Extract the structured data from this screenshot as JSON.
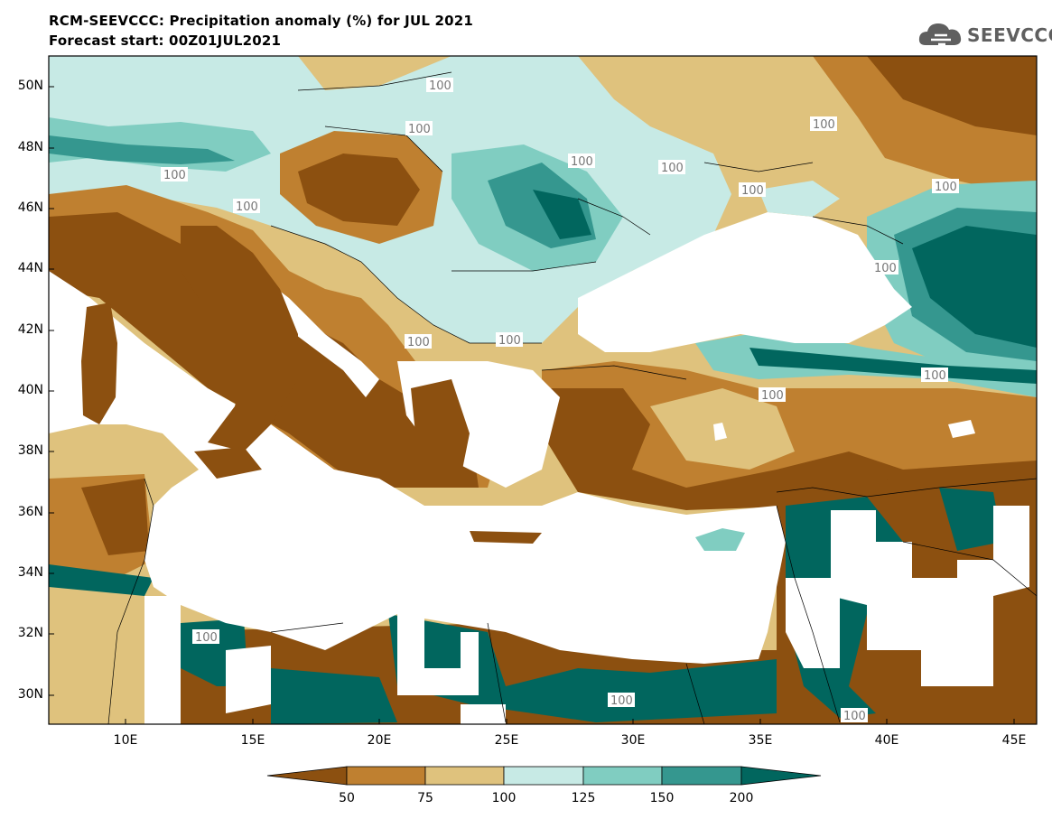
{
  "header": {
    "title": "RCM-SEEVCCC: Precipitation anomaly (%) for JUL 2021",
    "subtitle": "Forecast start: 00Z01JUL2021"
  },
  "logo": {
    "text": "SEEVCCC",
    "icon": "cloud-icon",
    "color": "#5f5f5f"
  },
  "axes": {
    "lat_labels": [
      "50N",
      "48N",
      "46N",
      "44N",
      "42N",
      "40N",
      "38N",
      "36N",
      "34N",
      "32N",
      "30N"
    ],
    "lon_labels": [
      "10E",
      "15E",
      "20E",
      "25E",
      "30E",
      "35E",
      "40E",
      "45E"
    ]
  },
  "contour_label": "100",
  "colorbar": {
    "labels": [
      "50",
      "75",
      "100",
      "125",
      "150",
      "200"
    ],
    "colors": [
      "#8c5010",
      "#bf8030",
      "#dfc27d",
      "#c7eae5",
      "#80cdc1",
      "#35978f",
      "#01665e"
    ]
  },
  "legend_colors": {
    "very_dry": "#8c5010",
    "dry": "#bf8030",
    "slightly_dry": "#dfc27d",
    "slightly_wet": "#c7eae5",
    "wet": "#80cdc1",
    "very_wet": "#35978f",
    "extreme_wet": "#01665e",
    "sea": "#ffffff"
  }
}
